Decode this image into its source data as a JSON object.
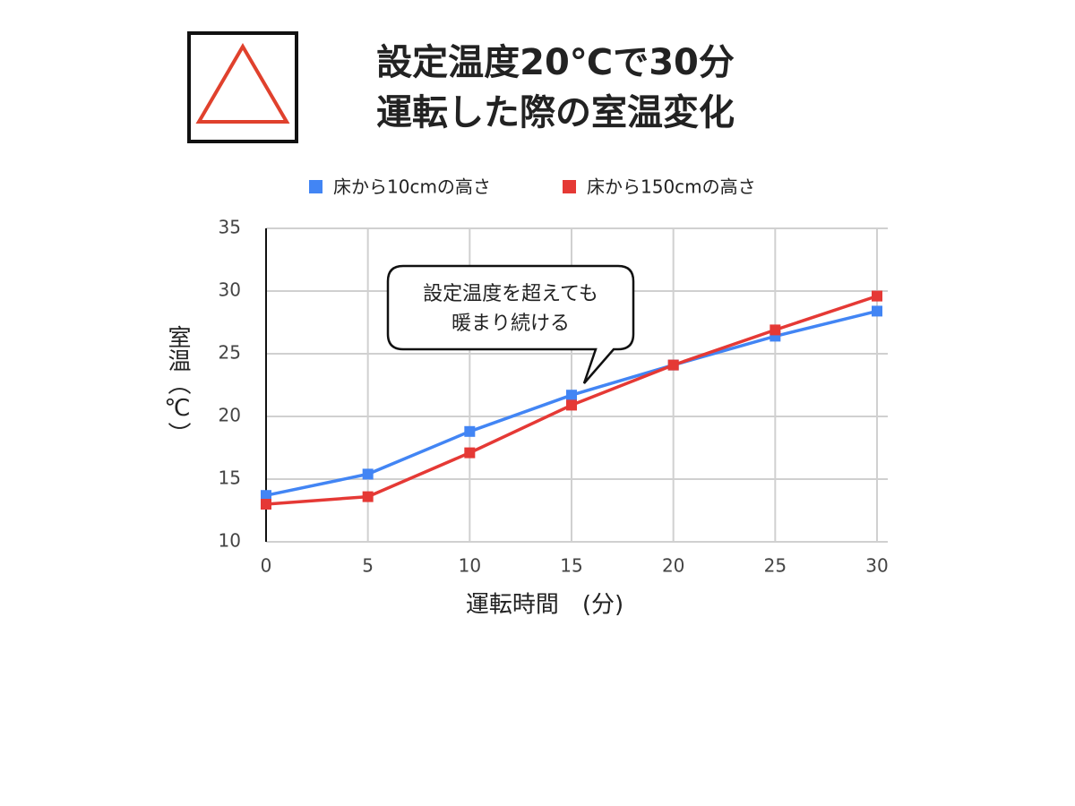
{
  "chart_data": {
    "type": "line",
    "title_lines": [
      "設定温度20℃で30分",
      "運転した際の室温変化"
    ],
    "x_label": "運転時間　(分)",
    "y_label": "室温（℃）",
    "annotation_lines": [
      "設定温度を超えても",
      "暖まり続ける"
    ],
    "x": [
      0,
      5,
      10,
      15,
      20,
      25,
      30
    ],
    "series": [
      {
        "name": "床から10cmの高さ",
        "color": "#4285f4",
        "values": [
          13.7,
          15.4,
          18.8,
          21.7,
          24.1,
          26.4,
          28.4
        ]
      },
      {
        "name": "床から150cmの高さ",
        "color": "#e53935",
        "values": [
          13.0,
          13.6,
          17.1,
          20.9,
          24.1,
          26.9,
          29.6
        ]
      }
    ],
    "xlim": [
      0,
      30
    ],
    "xticks": [
      0,
      5,
      10,
      15,
      20,
      25,
      30
    ],
    "ylim": [
      10,
      35
    ],
    "yticks": [
      10,
      15,
      20,
      25,
      30,
      35
    ],
    "grid": true,
    "legend": "top"
  }
}
